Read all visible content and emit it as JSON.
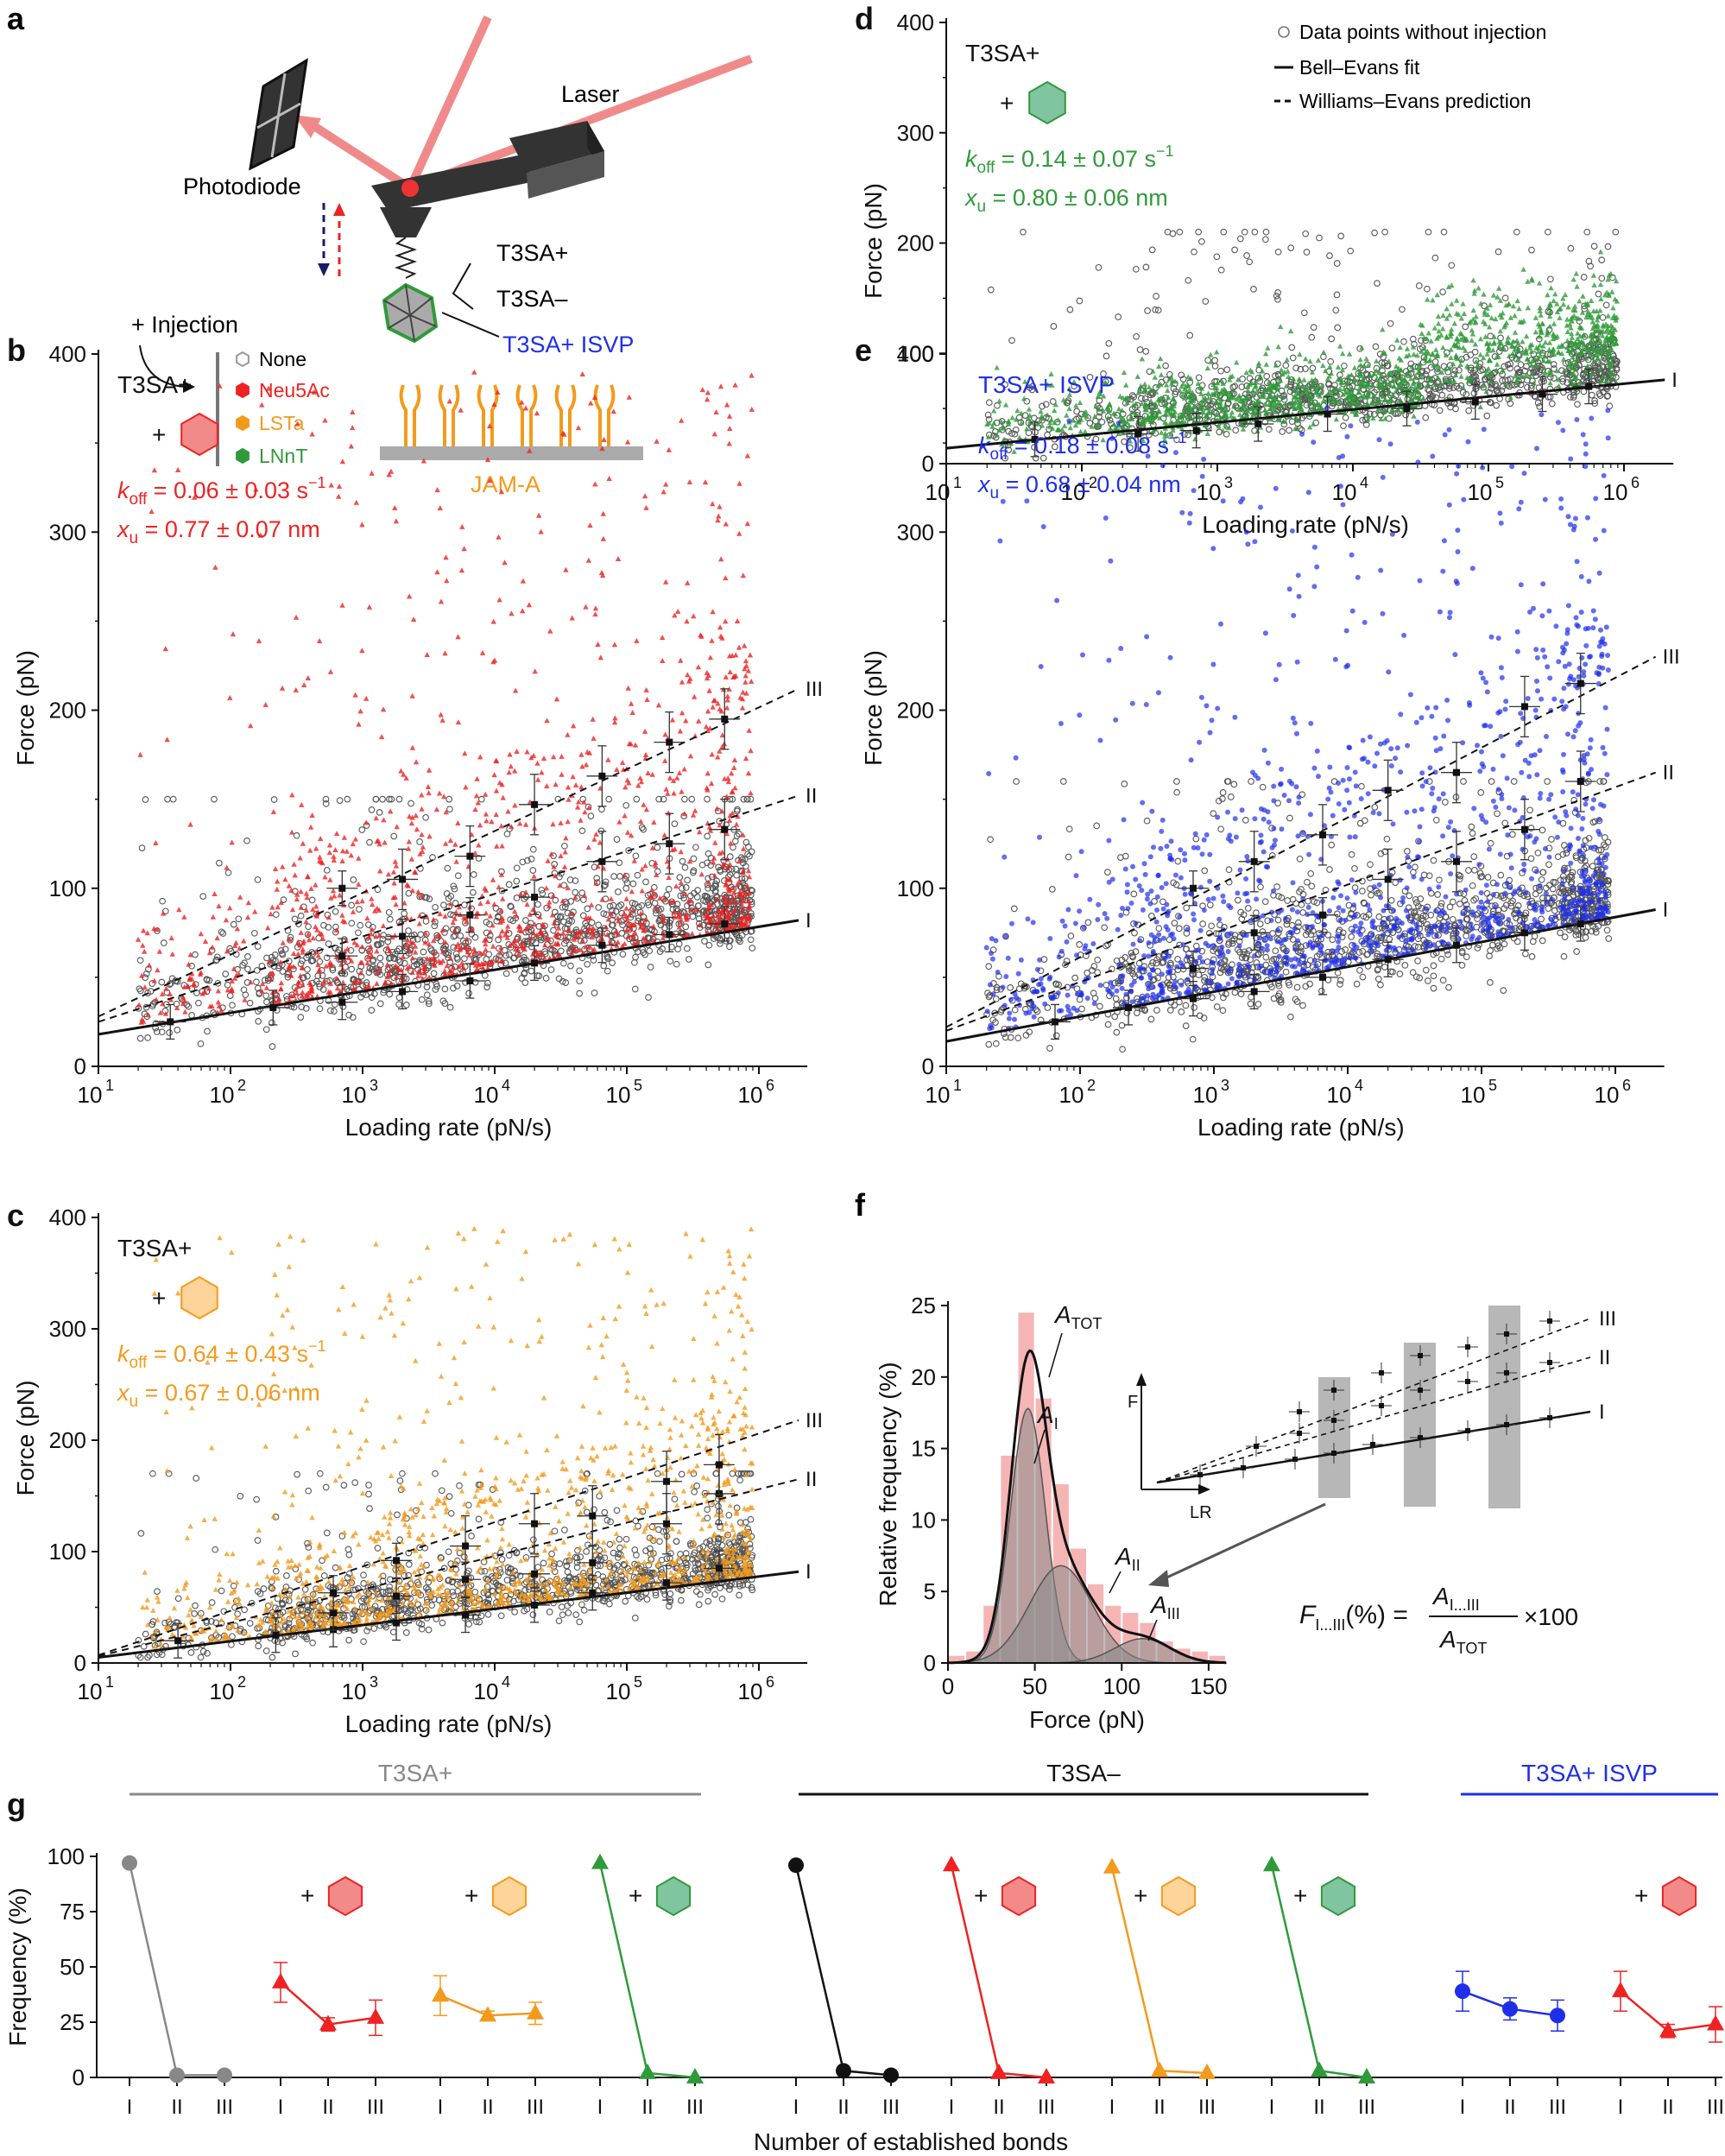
{
  "colors": {
    "none": "#777777",
    "neu5ac": "#ee2222",
    "lsta": "#f39a1c",
    "lnnt": "#2f9a3a",
    "isvp": "#1f2fe8",
    "black": "#111111",
    "hex_red_fill": "#f28a8a",
    "hex_orange_fill": "#ffd49a",
    "hex_green_fill": "#80c4a0"
  },
  "panel_a": {
    "letter": "a",
    "laser": "Laser",
    "photodiode": "Photodiode",
    "t3sa_plus": "T3SA+",
    "t3sa_minus": "T3SA–",
    "t3sa_isvp": "T3SA+ ISVP",
    "injection": "+ Injection",
    "legend": [
      "None",
      "Neu5Ac",
      "LSTa",
      "LNnT"
    ],
    "jama": "JAM-A"
  },
  "legend_d": {
    "open": "Data points without injection",
    "solid": "Bell–Evans fit",
    "dashed": "Williams–Evans prediction"
  },
  "panel_f": {
    "letter": "f",
    "a_tot": "A",
    "a_tot_sub": "TOT",
    "a_i_sub": "I",
    "a_ii_sub": "II",
    "a_iii_sub": "III",
    "inset_f": "F",
    "inset_lr": "LR",
    "formula_lhs": "F",
    "formula_lhs_sub": "I...III",
    "formula_pct": "(%) =",
    "formula_num": "A",
    "formula_num_sub": "I...III",
    "formula_den": "A",
    "formula_den_sub": "TOT",
    "formula_x": "×100",
    "inset_labels": [
      "I",
      "II",
      "III"
    ]
  },
  "chart_data": [
    {
      "id": "d",
      "type": "scatter",
      "letter": "d",
      "series_label": "T3SA+",
      "plus": "+",
      "injection": "LNnT",
      "color": "#2f9a3a",
      "koff": "0.14 ± 0.07 s",
      "koff_exp": "−1",
      "xu": "0.80 ± 0.06 nm",
      "xlabel": "Loading rate (pN/s)",
      "ylabel": "Force (pN)",
      "xscale": "log",
      "xlim": [
        10,
        2000000
      ],
      "ylim": [
        0,
        400
      ],
      "yticks": [
        0,
        100,
        200,
        300,
        400
      ],
      "xtick_exps": [
        "1",
        "2",
        "3",
        "4",
        "5",
        "6"
      ],
      "fits": [
        {
          "label": "I",
          "dashed": false,
          "y_at_10": 14,
          "y_at_2e6": 76
        }
      ],
      "means": [
        {
          "line": "I",
          "x": [
            45,
            260,
            700,
            2000,
            6500,
            25000,
            80000,
            250000,
            550000
          ],
          "y": [
            22,
            27,
            30,
            36,
            45,
            50,
            56,
            63,
            70
          ]
        }
      ],
      "cloud": {
        "n_without": 1100,
        "n_with": 1400,
        "ymax_without": 210,
        "ymax_with": 240
      }
    },
    {
      "id": "b",
      "type": "scatter",
      "letter": "b",
      "series_label": "T3SA+",
      "plus": "+",
      "injection": "Neu5Ac",
      "color": "#ee2222",
      "koff": "0.06 ± 0.03 s",
      "koff_exp": "−1",
      "xu": "0.77 ± 0.07 nm",
      "xlabel": "Loading rate (pN/s)",
      "ylabel": "Force (pN)",
      "xscale": "log",
      "xlim": [
        10,
        2000000
      ],
      "ylim": [
        0,
        400
      ],
      "yticks": [
        0,
        100,
        200,
        300,
        400
      ],
      "xtick_exps": [
        "1",
        "2",
        "3",
        "4",
        "5",
        "6"
      ],
      "fits": [
        {
          "label": "I",
          "dashed": false,
          "y_at_10": 18,
          "y_at_2e6": 82
        },
        {
          "label": "II",
          "dashed": true,
          "y_at_10": 25,
          "y_at_2e6": 152
        },
        {
          "label": "III",
          "dashed": true,
          "y_at_10": 28,
          "y_at_2e6": 212
        }
      ],
      "means": [
        {
          "line": "I",
          "x": [
            35,
            210,
            700,
            2000,
            6500,
            20000,
            65000,
            210000,
            550000
          ],
          "y": [
            25,
            33,
            36,
            42,
            48,
            58,
            68,
            74,
            80
          ]
        },
        {
          "line": "II",
          "x": [
            700,
            2000,
            6500,
            20000,
            65000,
            210000,
            550000
          ],
          "y": [
            62,
            73,
            85,
            95,
            115,
            125,
            133
          ]
        },
        {
          "line": "III",
          "x": [
            700,
            2000,
            6500,
            20000,
            65000,
            210000,
            550000
          ],
          "y": [
            100,
            105,
            118,
            147,
            163,
            182,
            195
          ]
        }
      ],
      "cloud": {
        "n_without": 1200,
        "n_with": 1300,
        "ymax_without": 150,
        "ymax_with": 390
      }
    },
    {
      "id": "e",
      "type": "scatter",
      "letter": "e",
      "series_label": "T3SA+ ISVP",
      "plus": "",
      "injection": "None",
      "color": "#1f2fe8",
      "koff": "0.18 ± 0.08 s",
      "koff_exp": "−1",
      "xu": "0.68 ± 0.04 nm",
      "xlabel": "Loading rate (pN/s)",
      "ylabel": "Force (pN)",
      "xscale": "log",
      "xlim": [
        10,
        2000000
      ],
      "ylim": [
        0,
        400
      ],
      "yticks": [
        0,
        100,
        200,
        300,
        400
      ],
      "xtick_exps": [
        "1",
        "2",
        "3",
        "4",
        "5",
        "6"
      ],
      "fits": [
        {
          "label": "I",
          "dashed": false,
          "y_at_10": 14,
          "y_at_2e6": 88
        },
        {
          "label": "II",
          "dashed": true,
          "y_at_10": 20,
          "y_at_2e6": 165
        },
        {
          "label": "III",
          "dashed": true,
          "y_at_10": 22,
          "y_at_2e6": 230
        }
      ],
      "means": [
        {
          "line": "I",
          "x": [
            65,
            230,
            700,
            2000,
            6500,
            20000,
            65000,
            210000,
            550000
          ],
          "y": [
            25,
            33,
            38,
            42,
            50,
            60,
            68,
            75,
            80
          ]
        },
        {
          "line": "II",
          "x": [
            700,
            2000,
            6500,
            20000,
            65000,
            210000,
            550000
          ],
          "y": [
            55,
            75,
            85,
            105,
            115,
            133,
            160
          ]
        },
        {
          "line": "III",
          "x": [
            700,
            2000,
            6500,
            20000,
            65000,
            210000,
            550000
          ],
          "y": [
            100,
            115,
            130,
            155,
            165,
            202,
            215
          ]
        }
      ],
      "cloud": {
        "n_without": 1200,
        "n_with": 1300,
        "ymax_without": 160,
        "ymax_with": 370
      }
    },
    {
      "id": "c",
      "type": "scatter",
      "letter": "c",
      "series_label": "T3SA+",
      "plus": "+",
      "injection": "LSTa",
      "color": "#f39a1c",
      "koff": "0.64 ± 0.43 s",
      "koff_exp": "−1",
      "xu": "0.67 ± 0.06 nm",
      "xlabel": "Loading rate (pN/s)",
      "ylabel": "Force (pN)",
      "xscale": "log",
      "xlim": [
        10,
        2000000
      ],
      "ylim": [
        0,
        400
      ],
      "yticks": [
        0,
        100,
        200,
        300,
        400
      ],
      "xtick_exps": [
        "1",
        "2",
        "3",
        "4",
        "5",
        "6"
      ],
      "fits": [
        {
          "label": "I",
          "dashed": false,
          "y_at_10": 5,
          "y_at_2e6": 82
        },
        {
          "label": "II",
          "dashed": true,
          "y_at_10": 6,
          "y_at_2e6": 165
        },
        {
          "label": "III",
          "dashed": true,
          "y_at_10": 7,
          "y_at_2e6": 218
        }
      ],
      "means": [
        {
          "line": "I",
          "x": [
            40,
            220,
            600,
            1800,
            6000,
            20000,
            55000,
            200000,
            500000
          ],
          "y": [
            20,
            25,
            30,
            36,
            43,
            52,
            63,
            72,
            85
          ]
        },
        {
          "line": "II",
          "x": [
            600,
            1800,
            6000,
            20000,
            55000,
            200000,
            500000
          ],
          "y": [
            45,
            60,
            75,
            80,
            90,
            125,
            152
          ]
        },
        {
          "line": "III",
          "x": [
            600,
            1800,
            6000,
            20000,
            55000,
            200000,
            500000
          ],
          "y": [
            63,
            92,
            105,
            125,
            132,
            163,
            178
          ]
        }
      ],
      "cloud": {
        "n_without": 1200,
        "n_with": 1300,
        "ymax_without": 170,
        "ymax_with": 390
      }
    },
    {
      "id": "f",
      "type": "bar",
      "xlabel": "Force (pN)",
      "ylabel": "Relative frequency (%)",
      "xlim": [
        0,
        160
      ],
      "ylim": [
        0,
        25
      ],
      "xticks": [
        0,
        50,
        100,
        150
      ],
      "yticks": [
        0,
        5,
        10,
        15,
        20,
        25
      ],
      "bin_width": 10,
      "bins": [
        5,
        15,
        25,
        35,
        45,
        55,
        65,
        75,
        85,
        95,
        105,
        115,
        125,
        135,
        145,
        155
      ],
      "values": [
        0.5,
        0.8,
        4.0,
        14.5,
        24.5,
        18.5,
        12.5,
        8.0,
        5.5,
        4.0,
        3.5,
        2.8,
        1.5,
        1.0,
        0.8,
        0.5
      ],
      "gaussians": [
        {
          "label": "I",
          "mu": 46,
          "sigma": 10,
          "amp": 17.8
        },
        {
          "label": "II",
          "mu": 65,
          "sigma": 18,
          "amp": 6.8
        },
        {
          "label": "III",
          "mu": 112,
          "sigma": 16,
          "amp": 1.7
        }
      ]
    },
    {
      "id": "g",
      "type": "line",
      "letter": "g",
      "ylabel": "Frequency (%)",
      "xlabel": "Number of established bonds",
      "ylim": [
        0,
        100
      ],
      "yticks": [
        0,
        25,
        50,
        75,
        100
      ],
      "categories": [
        "I",
        "II",
        "III"
      ],
      "groups": [
        {
          "label": "T3SA+",
          "color": "#888888",
          "from": 0,
          "to": 3
        },
        {
          "label": "T3SA–",
          "color": "#111111",
          "from": 4,
          "to": 7
        },
        {
          "label": "T3SA+ ISVP",
          "color": "#1f2fe8",
          "from": 8,
          "to": 9
        }
      ],
      "series": [
        {
          "name": "T3SA+ none",
          "color": "#888888",
          "marker": "circle",
          "injection": "",
          "values": [
            97,
            1,
            1
          ],
          "err": [
            0,
            0,
            0
          ]
        },
        {
          "name": "T3SA+ Neu5Ac",
          "color": "#ee2222",
          "marker": "triangle",
          "injection": "neu5ac",
          "values": [
            43,
            24,
            27
          ],
          "err": [
            9,
            3,
            8
          ]
        },
        {
          "name": "T3SA+ LSTa",
          "color": "#f39a1c",
          "marker": "triangle",
          "injection": "lsta",
          "values": [
            37,
            28,
            29
          ],
          "err": [
            9,
            2,
            5
          ]
        },
        {
          "name": "T3SA+ LNnT",
          "color": "#2f9a3a",
          "marker": "triangle",
          "injection": "lnnt",
          "values": [
            97,
            2,
            0
          ],
          "err": [
            0,
            0,
            0
          ]
        },
        {
          "name": "T3SA- none",
          "color": "#111111",
          "marker": "circle",
          "injection": "",
          "values": [
            96,
            3,
            1
          ],
          "err": [
            0,
            0,
            0
          ]
        },
        {
          "name": "T3SA- Neu5Ac",
          "color": "#ee2222",
          "marker": "triangle",
          "injection": "neu5ac",
          "values": [
            96,
            2,
            0
          ],
          "err": [
            0,
            0,
            0
          ]
        },
        {
          "name": "T3SA- LSTa",
          "color": "#f39a1c",
          "marker": "triangle",
          "injection": "lsta",
          "values": [
            95,
            3,
            2
          ],
          "err": [
            0,
            0,
            0
          ]
        },
        {
          "name": "T3SA- LNnT",
          "color": "#2f9a3a",
          "marker": "triangle",
          "injection": "lnnt",
          "values": [
            96,
            3,
            0
          ],
          "err": [
            0,
            0,
            0
          ]
        },
        {
          "name": "T3SA+ ISVP none",
          "color": "#1f2fe8",
          "marker": "circle",
          "injection": "",
          "values": [
            39,
            31,
            28
          ],
          "err": [
            9,
            5,
            7
          ]
        },
        {
          "name": "T3SA+ ISVP Neu5Ac",
          "color": "#ee2222",
          "marker": "triangle",
          "injection": "neu5ac",
          "values": [
            39,
            21,
            24
          ],
          "err": [
            9,
            3,
            8
          ]
        }
      ]
    }
  ]
}
